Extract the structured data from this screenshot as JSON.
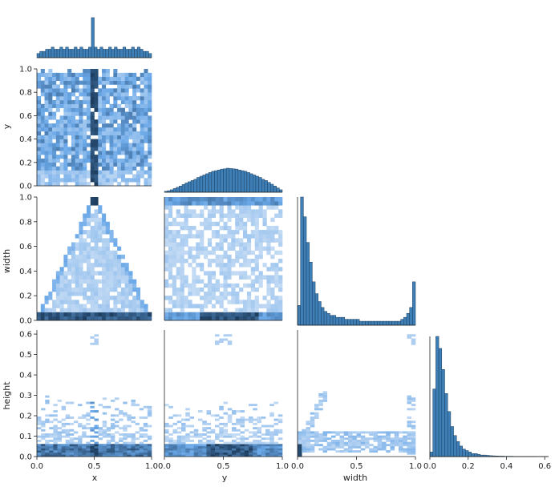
{
  "chart_data": {
    "type": "pairplot",
    "variables": [
      "x",
      "y",
      "width",
      "height"
    ],
    "diag_kind": "hist",
    "offdiag_kind": "hist2d",
    "corner": true,
    "colors": {
      "bar_fill": "#3d7fb6",
      "bar_edge": "#1f3f5e",
      "heat_low": "#dbe8f7",
      "heat_mid": "#6aa8e8",
      "heat_high": "#1d3d5e",
      "axis": "#222222"
    },
    "axes": {
      "x": {
        "range": [
          0,
          1
        ],
        "ticks": [
          0,
          0.5,
          1
        ],
        "tick_labels": [
          "0.0",
          "0.5",
          "1.0"
        ]
      },
      "y": {
        "range": [
          0,
          1
        ],
        "ticks": [
          0,
          0.5,
          1
        ],
        "tick_labels": [
          "0.0",
          "0.5",
          "1.0"
        ],
        "row_ticks": [
          0,
          0.2,
          0.4,
          0.6,
          0.8,
          1.0
        ],
        "row_tick_labels": [
          "0.0",
          "0.2",
          "0.4",
          "0.6",
          "0.8",
          "1.0"
        ]
      },
      "width": {
        "range": [
          0,
          1
        ],
        "ticks": [
          0,
          0.5,
          1
        ],
        "tick_labels": [
          "0.0",
          "0.5",
          "1.0"
        ],
        "row_ticks": [
          0,
          0.2,
          0.4,
          0.6,
          0.8,
          1.0
        ],
        "row_tick_labels": [
          "0.0",
          "0.2",
          "0.4",
          "0.6",
          "0.8",
          "1.0"
        ]
      },
      "height": {
        "range": [
          0,
          0.62
        ],
        "ticks": [
          0,
          0.2,
          0.4,
          0.6
        ],
        "tick_labels": [
          "0.0",
          "0.2",
          "0.4",
          "0.6"
        ],
        "row_ticks": [
          0,
          0.1,
          0.2,
          0.3,
          0.4,
          0.5,
          0.6
        ],
        "row_tick_labels": [
          "0.0",
          "0.1",
          "0.2",
          "0.3",
          "0.4",
          "0.5",
          "0.6"
        ]
      }
    },
    "diagonal": {
      "x": {
        "bins": 40,
        "counts": [
          2,
          3,
          3,
          4,
          4,
          5,
          4,
          4,
          5,
          4,
          5,
          4,
          4,
          5,
          4,
          5,
          4,
          4,
          5,
          19,
          5,
          4,
          5,
          4,
          4,
          5,
          4,
          5,
          4,
          4,
          5,
          4,
          4,
          5,
          4,
          5,
          4,
          3,
          3,
          2
        ]
      },
      "y": {
        "bins": 40,
        "counts": [
          0.3,
          0.5,
          0.8,
          1.2,
          1.6,
          2,
          2.5,
          3,
          3.4,
          3.8,
          4.2,
          4.8,
          5.2,
          5.6,
          6,
          6.4,
          6.8,
          7,
          7.2,
          7.5,
          7.6,
          7.8,
          7.7,
          7.6,
          7.5,
          7.2,
          7,
          6.8,
          6.4,
          6,
          5.6,
          5.2,
          4.8,
          4.2,
          3.8,
          3.2,
          2.6,
          2,
          1.4,
          0.8
        ]
      },
      "width": {
        "bins": 40,
        "counts": [
          10,
          65,
          55,
          42,
          32,
          22,
          16,
          12,
          9,
          7,
          6,
          5,
          5,
          4,
          4,
          4,
          3,
          3,
          3,
          3,
          3,
          2,
          2,
          2,
          2,
          2,
          2,
          2,
          2,
          2,
          2,
          2,
          2,
          2,
          2,
          3,
          4,
          6,
          9,
          22
        ]
      },
      "height": {
        "bins": 40,
        "counts": [
          3,
          45,
          80,
          72,
          58,
          42,
          30,
          20,
          14,
          10,
          7,
          5,
          4,
          3,
          2,
          2,
          1.5,
          1,
          1,
          0.8,
          0.6,
          0.5,
          0.4,
          0.3,
          0.3,
          0.2,
          0.2,
          0.2,
          0.1,
          0.1,
          0.1,
          0.1,
          0.1,
          0.1,
          0.1,
          0.1,
          0,
          0,
          0,
          0
        ]
      }
    },
    "pairs": [
      {
        "x": "x",
        "y": "y",
        "pattern": "uniform with dense band at x=0.5"
      },
      {
        "x": "x",
        "y": "width",
        "pattern": "triangle, peak width≈1 at x=0.5, dense at width≈0.03"
      },
      {
        "x": "y",
        "y": "width",
        "pattern": "broad, dense at width≈0.03 and width≈0.98"
      },
      {
        "x": "x",
        "y": "height",
        "pattern": "dense at height≈0.04, band at x=0.5, sparse to 0.35, outliers near 0.57"
      },
      {
        "x": "y",
        "y": "height",
        "pattern": "dense at height≈0.04 centered, sparse to 0.35, outliers near 0.57"
      },
      {
        "x": "width",
        "y": "height",
        "pattern": "rising from origin, band at height≈0.05, outliers near 0.57"
      }
    ]
  }
}
